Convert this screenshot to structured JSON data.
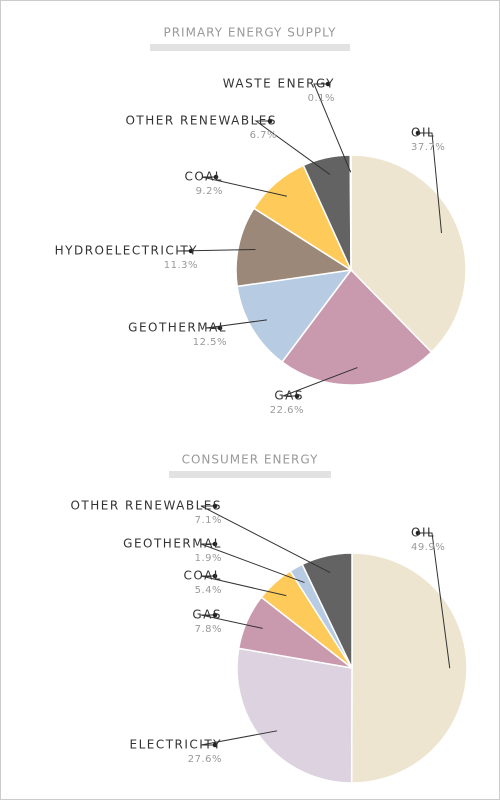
{
  "chart_data": [
    {
      "type": "pie",
      "title": "PRIMARY ENERGY SUPPLY",
      "categories": [
        "OIL",
        "GAS",
        "GEOTHERMAL",
        "HYDROELECTRICITY",
        "COAL",
        "OTHER RENEWABLES",
        "WASTE ENERGY"
      ],
      "values": [
        37.7,
        22.6,
        12.5,
        11.3,
        9.2,
        6.7,
        0.1
      ],
      "value_labels": [
        "37.7%",
        "22.6%",
        "12.5%",
        "11.3%",
        "9.2%",
        "6.7%",
        "0.1%"
      ],
      "colors": [
        "#ede5cf",
        "#c99aae",
        "#b7cce2",
        "#9c8878",
        "#fecb5a",
        "#636363",
        "#bbbbbb"
      ]
    },
    {
      "type": "pie",
      "title": "CONSUMER ENERGY",
      "categories": [
        "OIL",
        "ELECTRICITY",
        "GAS",
        "COAL",
        "GEOTHERMAL",
        "OTHER RENEWABLES"
      ],
      "values": [
        49.9,
        27.6,
        7.8,
        5.4,
        1.9,
        7.1
      ],
      "value_labels": [
        "49.9%",
        "27.6%",
        "7.8%",
        "5.4%",
        "1.9%",
        "7.1%"
      ],
      "colors": [
        "#ede5cf",
        "#ddd2e0",
        "#c99aae",
        "#fecb5a",
        "#b7cce2",
        "#636363"
      ]
    }
  ]
}
